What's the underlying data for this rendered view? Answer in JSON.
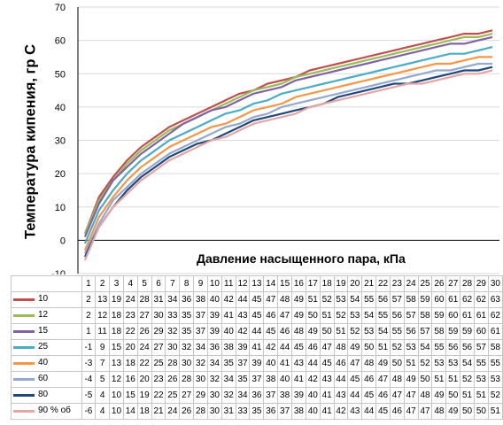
{
  "chart_data": {
    "type": "line",
    "ylabel": "Температура кипения, гр С",
    "xlabel": "Давление насыщенного пара, кПа",
    "ylim": [
      -10,
      70
    ],
    "yticks": [
      "-10",
      "0",
      "10",
      "20",
      "30",
      "40",
      "50",
      "60",
      "70"
    ],
    "grid": true,
    "x": [
      "1",
      "2",
      "3",
      "4",
      "5",
      "6",
      "7",
      "8",
      "9",
      "10",
      "11",
      "12",
      "13",
      "14",
      "15",
      "16",
      "17",
      "18",
      "19",
      "20",
      "21",
      "22",
      "23",
      "24",
      "25",
      "26",
      "27",
      "28",
      "29",
      "30"
    ],
    "series": [
      {
        "name": "10",
        "color": "#c0504d",
        "values": [
          2,
          13,
          19,
          24,
          28,
          31,
          34,
          36,
          38,
          40,
          42,
          44,
          45,
          47,
          48,
          49,
          51,
          52,
          53,
          54,
          55,
          56,
          57,
          58,
          59,
          60,
          61,
          62,
          62,
          63
        ]
      },
      {
        "name": "12",
        "color": "#9bbb59",
        "values": [
          2,
          12,
          18,
          23,
          27,
          30,
          33,
          35,
          37,
          39,
          41,
          43,
          45,
          46,
          47,
          49,
          50,
          51,
          52,
          53,
          54,
          55,
          56,
          57,
          58,
          59,
          60,
          61,
          61,
          62
        ]
      },
      {
        "name": "15",
        "color": "#8064a2",
        "values": [
          1,
          11,
          18,
          22,
          26,
          29,
          32,
          35,
          37,
          39,
          40,
          42,
          44,
          45,
          46,
          48,
          49,
          50,
          51,
          52,
          53,
          54,
          55,
          56,
          57,
          58,
          59,
          59,
          60,
          61
        ]
      },
      {
        "name": "25",
        "color": "#4bacc6",
        "values": [
          -1,
          9,
          15,
          20,
          24,
          27,
          30,
          32,
          34,
          36,
          38,
          39,
          41,
          42,
          44,
          45,
          46,
          47,
          48,
          49,
          50,
          51,
          52,
          53,
          54,
          55,
          56,
          56,
          57,
          58
        ]
      },
      {
        "name": "40",
        "color": "#f79646",
        "values": [
          -3,
          7,
          13,
          18,
          22,
          25,
          28,
          30,
          32,
          34,
          35,
          37,
          39,
          40,
          41,
          43,
          44,
          45,
          46,
          47,
          48,
          49,
          50,
          51,
          52,
          53,
          53,
          54,
          55,
          55
        ]
      },
      {
        "name": "60",
        "color": "#93a9cf",
        "values": [
          -4,
          5,
          12,
          16,
          20,
          23,
          26,
          28,
          30,
          32,
          34,
          35,
          37,
          38,
          40,
          41,
          42,
          43,
          44,
          45,
          46,
          47,
          48,
          49,
          50,
          51,
          51,
          52,
          53,
          53
        ]
      },
      {
        "name": "80",
        "color": "#1f497d",
        "values": [
          -5,
          4,
          10,
          15,
          19,
          22,
          25,
          27,
          29,
          30,
          32,
          34,
          36,
          37,
          38,
          39,
          40,
          41,
          43,
          44,
          45,
          46,
          47,
          47,
          48,
          49,
          50,
          51,
          51,
          52
        ]
      },
      {
        "name": "90 % об",
        "color": "#e6a6a3",
        "values": [
          -6,
          4,
          10,
          14,
          18,
          21,
          24,
          26,
          28,
          30,
          31,
          33,
          35,
          36,
          37,
          38,
          40,
          41,
          42,
          43,
          44,
          45,
          46,
          47,
          47,
          48,
          49,
          50,
          50,
          51
        ]
      }
    ]
  }
}
